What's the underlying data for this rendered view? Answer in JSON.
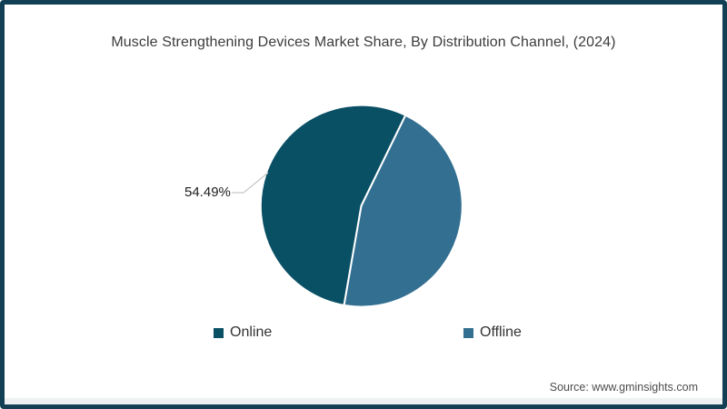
{
  "title": "Muscle Strengthening Devices Market Share, By Distribution Channel, (2024)",
  "source": "Source: www.gminsights.com",
  "frame": {
    "border_color": "#133f55",
    "background": "#ffffff",
    "footer_strip_color": "#eef1f1"
  },
  "chart_data": {
    "type": "pie",
    "title": "Muscle Strengthening Devices Market Share, By Distribution Channel, (2024)",
    "slices": [
      {
        "label": "Online",
        "value": 54.49,
        "color": "#095065",
        "data_label": "54.49%"
      },
      {
        "label": "Offline",
        "value": 45.51,
        "color": "#336f91",
        "data_label": ""
      }
    ],
    "legend_position": "bottom",
    "start_angle_deg": 26,
    "slice_border_color": "#ffffff",
    "connector_color": "#c8c8c8"
  }
}
